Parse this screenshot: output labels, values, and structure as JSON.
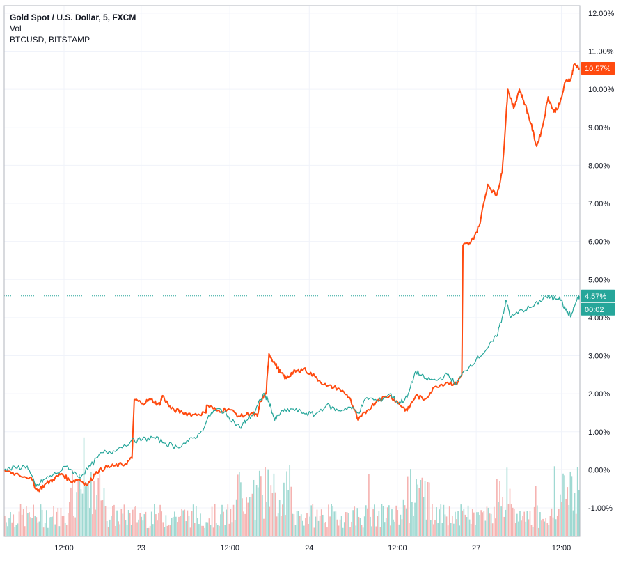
{
  "legend": {
    "main": "Gold Spot / U.S. Dollar, 5, FXCM",
    "vol": "Vol",
    "compare": "BTCUSD, BITSTAMP"
  },
  "chart_data": {
    "type": "line",
    "y_unit": "%",
    "ylim": [
      -1.75,
      12.2
    ],
    "y_ticks": [
      "12.00%",
      "11.00%",
      "10.00%",
      "9.00%",
      "8.00%",
      "7.00%",
      "6.00%",
      "5.00%",
      "4.00%",
      "3.00%",
      "2.00%",
      "1.00%",
      "0.00%",
      "-1.00%"
    ],
    "x_ticks": [
      {
        "label": "12:00",
        "t": 0.104
      },
      {
        "label": "23",
        "t": 0.238
      },
      {
        "label": "12:00",
        "t": 0.392
      },
      {
        "label": "24",
        "t": 0.53
      },
      {
        "label": "12:00",
        "t": 0.683
      },
      {
        "label": "27",
        "t": 0.82
      },
      {
        "label": "12:00",
        "t": 0.968
      }
    ],
    "grid": true,
    "colors": {
      "btc": "#ff4a0f",
      "gold_up": "#26a69a",
      "gold_down": "#ef5350",
      "vol_up": "#9fd9d2",
      "vol_down": "#f5b3b1",
      "grid": "#f0f3fa"
    },
    "series": [
      {
        "key": "btc",
        "name": "BTCUSD, BITSTAMP",
        "color": "#ff4a0f",
        "points": [
          [
            0,
            0
          ],
          [
            0.02,
            -0.1
          ],
          [
            0.045,
            -0.2
          ],
          [
            0.058,
            -0.55
          ],
          [
            0.07,
            -0.4
          ],
          [
            0.085,
            -0.25
          ],
          [
            0.1,
            -0.1
          ],
          [
            0.115,
            -0.3
          ],
          [
            0.13,
            -0.25
          ],
          [
            0.145,
            -0.4
          ],
          [
            0.16,
            -0.05
          ],
          [
            0.175,
            0.05
          ],
          [
            0.19,
            0.1
          ],
          [
            0.21,
            0.15
          ],
          [
            0.222,
            0.3
          ],
          [
            0.226,
            1.85
          ],
          [
            0.24,
            1.75
          ],
          [
            0.255,
            1.85
          ],
          [
            0.27,
            1.7
          ],
          [
            0.275,
            1.95
          ],
          [
            0.29,
            1.6
          ],
          [
            0.31,
            1.5
          ],
          [
            0.33,
            1.45
          ],
          [
            0.35,
            1.5
          ],
          [
            0.352,
            1.7
          ],
          [
            0.37,
            1.55
          ],
          [
            0.39,
            1.6
          ],
          [
            0.41,
            1.4
          ],
          [
            0.43,
            1.5
          ],
          [
            0.44,
            1.4
          ],
          [
            0.445,
            1.8
          ],
          [
            0.455,
            2.0
          ],
          [
            0.46,
            3.05
          ],
          [
            0.47,
            2.8
          ],
          [
            0.48,
            2.55
          ],
          [
            0.49,
            2.4
          ],
          [
            0.5,
            2.55
          ],
          [
            0.51,
            2.6
          ],
          [
            0.52,
            2.65
          ],
          [
            0.54,
            2.45
          ],
          [
            0.56,
            2.2
          ],
          [
            0.58,
            2.15
          ],
          [
            0.6,
            1.9
          ],
          [
            0.615,
            1.3
          ],
          [
            0.63,
            1.55
          ],
          [
            0.65,
            1.85
          ],
          [
            0.67,
            1.95
          ],
          [
            0.685,
            1.75
          ],
          [
            0.7,
            1.55
          ],
          [
            0.715,
            1.95
          ],
          [
            0.73,
            1.85
          ],
          [
            0.75,
            2.2
          ],
          [
            0.77,
            2.3
          ],
          [
            0.785,
            2.25
          ],
          [
            0.795,
            2.5
          ],
          [
            0.797,
            5.9
          ],
          [
            0.81,
            5.95
          ],
          [
            0.825,
            6.4
          ],
          [
            0.84,
            7.5
          ],
          [
            0.855,
            7.2
          ],
          [
            0.865,
            7.8
          ],
          [
            0.875,
            10.0
          ],
          [
            0.885,
            9.5
          ],
          [
            0.895,
            10.0
          ],
          [
            0.905,
            9.6
          ],
          [
            0.915,
            9.1
          ],
          [
            0.925,
            8.5
          ],
          [
            0.935,
            9.0
          ],
          [
            0.945,
            9.8
          ],
          [
            0.955,
            9.4
          ],
          [
            0.965,
            9.6
          ],
          [
            0.975,
            10.2
          ],
          [
            0.985,
            10.3
          ],
          [
            0.99,
            10.65
          ],
          [
            1.0,
            10.57
          ]
        ]
      },
      {
        "key": "gold",
        "name": "Gold Spot / U.S. Dollar, 5, FXCM",
        "color": "#26a69a",
        "points": [
          [
            0,
            0
          ],
          [
            0.02,
            0.05
          ],
          [
            0.04,
            0.1
          ],
          [
            0.055,
            -0.45
          ],
          [
            0.07,
            -0.25
          ],
          [
            0.09,
            -0.1
          ],
          [
            0.11,
            0.1
          ],
          [
            0.13,
            -0.2
          ],
          [
            0.15,
            0.1
          ],
          [
            0.17,
            0.45
          ],
          [
            0.19,
            0.5
          ],
          [
            0.22,
            0.75
          ],
          [
            0.24,
            0.8
          ],
          [
            0.26,
            0.85
          ],
          [
            0.28,
            0.7
          ],
          [
            0.3,
            0.6
          ],
          [
            0.32,
            0.75
          ],
          [
            0.34,
            0.95
          ],
          [
            0.36,
            1.5
          ],
          [
            0.375,
            1.6
          ],
          [
            0.39,
            1.4
          ],
          [
            0.41,
            1.1
          ],
          [
            0.42,
            1.3
          ],
          [
            0.435,
            1.5
          ],
          [
            0.45,
            2.0
          ],
          [
            0.46,
            1.8
          ],
          [
            0.47,
            1.3
          ],
          [
            0.48,
            1.5
          ],
          [
            0.5,
            1.6
          ],
          [
            0.52,
            1.5
          ],
          [
            0.54,
            1.45
          ],
          [
            0.56,
            1.7
          ],
          [
            0.58,
            1.55
          ],
          [
            0.6,
            1.65
          ],
          [
            0.615,
            1.5
          ],
          [
            0.63,
            1.9
          ],
          [
            0.65,
            1.8
          ],
          [
            0.67,
            2.0
          ],
          [
            0.685,
            1.75
          ],
          [
            0.7,
            1.9
          ],
          [
            0.715,
            2.6
          ],
          [
            0.73,
            2.4
          ],
          [
            0.75,
            2.35
          ],
          [
            0.77,
            2.5
          ],
          [
            0.785,
            2.25
          ],
          [
            0.8,
            2.6
          ],
          [
            0.82,
            2.9
          ],
          [
            0.84,
            3.2
          ],
          [
            0.855,
            3.5
          ],
          [
            0.865,
            4.0
          ],
          [
            0.872,
            4.45
          ],
          [
            0.88,
            4.0
          ],
          [
            0.9,
            4.2
          ],
          [
            0.92,
            4.3
          ],
          [
            0.94,
            4.55
          ],
          [
            0.955,
            4.5
          ],
          [
            0.965,
            4.55
          ],
          [
            0.975,
            4.2
          ],
          [
            0.985,
            4.05
          ],
          [
            0.993,
            4.4
          ],
          [
            1.0,
            4.57
          ]
        ]
      }
    ],
    "last_values": {
      "btc": "10.57%",
      "gold": "4.57%",
      "countdown": "00:02"
    },
    "price_line": 4.57
  }
}
